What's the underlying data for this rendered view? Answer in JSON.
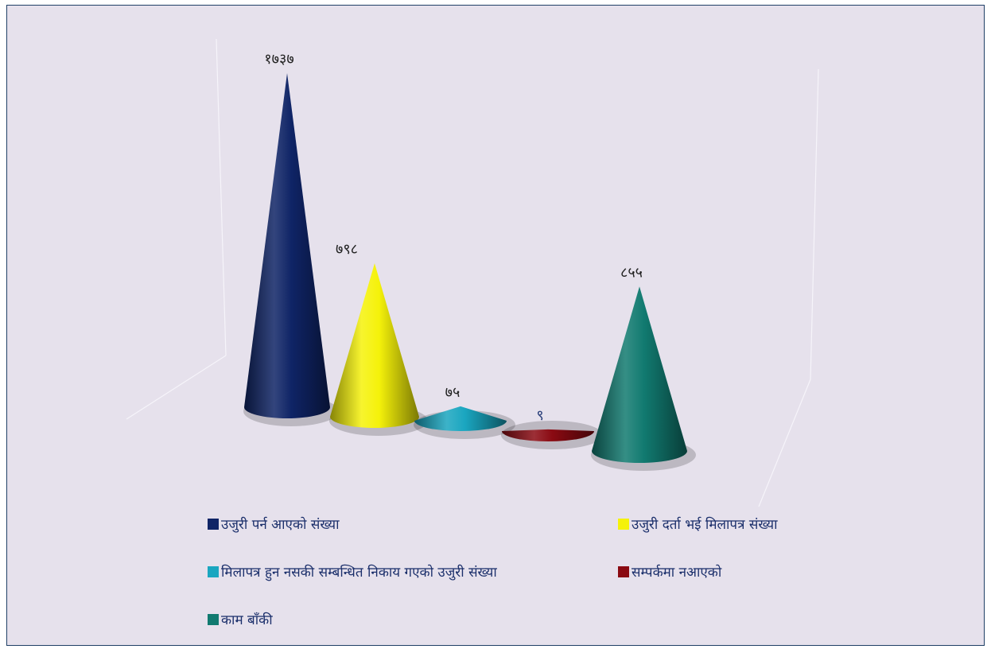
{
  "chart_data": {
    "type": "bar",
    "categories": [
      "उजुरी पर्न आएको संख्या",
      "उजुरी दर्ता भई मिलापत्र संख्या",
      "मिलापत्र हुन नसकी सम्बन्धित निकाय गएको उजुरी संख्या",
      "सम्पर्कमा नआएको",
      "काम बाँकी"
    ],
    "values": [
      1737,
      798,
      75,
      9,
      855
    ],
    "data_labels": [
      "१७३७",
      "७९८",
      "७५",
      "९",
      "८५५"
    ],
    "colors": [
      "#0f2466",
      "#f5f20a",
      "#1aa6c0",
      "#8a0a12",
      "#117a70"
    ],
    "title": "",
    "xlabel": "",
    "ylabel": "",
    "ylim": [
      0,
      1737
    ],
    "grid": false,
    "legend_position": "bottom"
  }
}
